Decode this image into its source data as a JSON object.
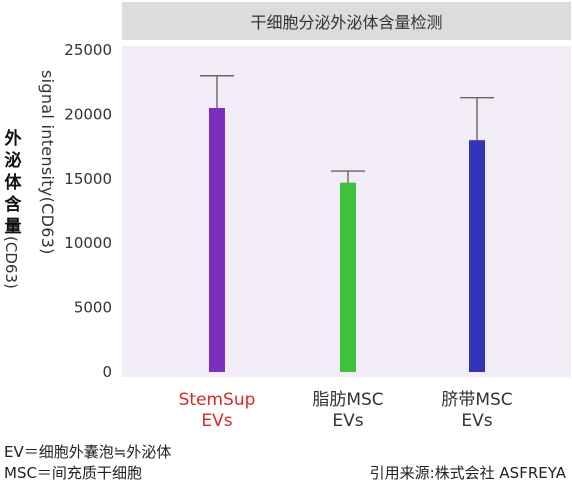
{
  "chart_data": {
    "type": "bar",
    "title": "干细胞分泌外泌体含量检测",
    "ylabel_main": "外泌体含量",
    "ylabel_unit": "(CD63)",
    "ylabel_en": "signal intensity(CD63)",
    "ylim": [
      0,
      25000
    ],
    "yticks": [
      0,
      5000,
      10000,
      15000,
      20000,
      25000
    ],
    "categories": [
      {
        "line1": "StemSup",
        "line2": "EVs",
        "color": "#d42a2a"
      },
      {
        "line1": "脂肪MSC",
        "line2": "EVs",
        "color": "#333333"
      },
      {
        "line1": "脐带MSC",
        "line2": "EVs",
        "color": "#333333"
      }
    ],
    "values": [
      20500,
      14700,
      18000
    ],
    "error_upper": [
      23000,
      15600,
      21300
    ],
    "bar_colors": [
      "#7b2fbf",
      "#3ec23b",
      "#3434b8"
    ],
    "grid": false
  },
  "notes": {
    "line1": "EV＝细胞外囊泡≒外泌体",
    "line2": "MSC＝间充质干细胞",
    "source": "引用来源:株式会社 ASFREYA"
  }
}
